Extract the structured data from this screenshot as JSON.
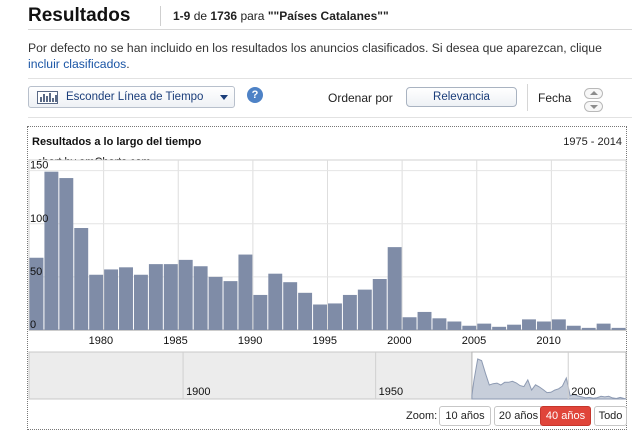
{
  "header": {
    "title": "Resultados",
    "range": "1-9",
    "of_word": "de",
    "total": "1736",
    "for_word": "para",
    "query": "\"\"Países Catalanes\"\""
  },
  "notice": {
    "text": "Por defecto no se han incluido en los resultados los anuncios clasificados. Si desea que aparezcan, clique",
    "link": "incluir clasificados",
    "end": "."
  },
  "controls": {
    "timeline_button": "Esconder Línea de Tiempo",
    "help_icon": "?",
    "order_label": "Ordenar por",
    "relevance_button": "Relevancia",
    "date_label": "Fecha"
  },
  "panel": {
    "title": "Resultados a lo largo del tiempo",
    "range": "1975 - 2014",
    "credit": "chart by amCharts.com"
  },
  "zoom": {
    "label": "Zoom:",
    "options": [
      "10 años",
      "20 años",
      "40 años",
      "Todo"
    ],
    "active": "40 años"
  },
  "colors": {
    "bar": "#7f8ca7",
    "active_zoom": "#e0453a",
    "link": "#1a55a5"
  },
  "chart_data": [
    {
      "type": "bar",
      "title": "Resultados a lo largo del tiempo",
      "x": [
        1975,
        1976,
        1977,
        1978,
        1979,
        1980,
        1981,
        1982,
        1983,
        1984,
        1985,
        1986,
        1987,
        1988,
        1989,
        1990,
        1991,
        1992,
        1993,
        1994,
        1995,
        1996,
        1997,
        1998,
        1999,
        2000,
        2001,
        2002,
        2003,
        2004,
        2005,
        2006,
        2007,
        2008,
        2009,
        2010,
        2011,
        2012,
        2013,
        2014
      ],
      "values": [
        68,
        149,
        143,
        96,
        52,
        57,
        59,
        52,
        62,
        62,
        66,
        60,
        50,
        46,
        71,
        33,
        53,
        45,
        35,
        24,
        25,
        33,
        38,
        48,
        78,
        12,
        17,
        11,
        8,
        4,
        6,
        3,
        5,
        10,
        8,
        10,
        4,
        2,
        6,
        2
      ],
      "x_ticks": [
        1980,
        1985,
        1990,
        1995,
        2000,
        2005,
        2010
      ],
      "y_ticks": [
        0,
        50,
        100,
        150
      ],
      "ylim": [
        0,
        160
      ],
      "xlim": [
        1975,
        2014
      ],
      "grid": true
    },
    {
      "type": "area",
      "x_ticks": [
        1900,
        1950,
        2000
      ],
      "xlim": [
        1860,
        2014
      ],
      "selected_range": [
        1975,
        2014
      ]
    }
  ]
}
